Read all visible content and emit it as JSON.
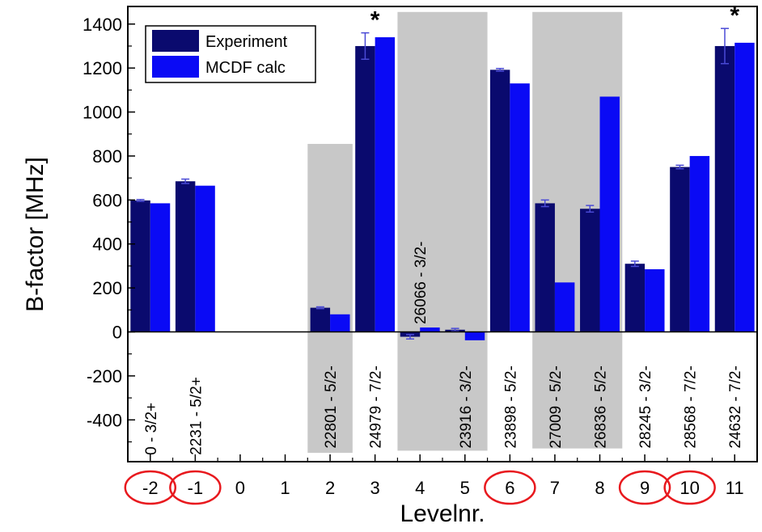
{
  "chart_data": {
    "type": "bar",
    "ylabel": "B-factor [MHz]",
    "xlabel": "Levelnr.",
    "ylim": [
      -590,
      1480
    ],
    "xlim": [
      -2.5,
      11.5
    ],
    "yticks": [
      -400,
      -200,
      0,
      200,
      400,
      600,
      800,
      1000,
      1200,
      1400
    ],
    "xticks": [
      "-2",
      "-1",
      "0",
      "1",
      "2",
      "3",
      "4",
      "5",
      "6",
      "7",
      "8",
      "9",
      "10",
      "11"
    ],
    "circled_ticks": [
      "-2",
      "-1",
      "6",
      "9",
      "10"
    ],
    "colors": {
      "experiment": "#0a0a6e",
      "calc": "#0a0af5",
      "shade": "#c8c8c8",
      "circle": "#e8191e",
      "errorbar": "#4a4ad6"
    },
    "legend": {
      "placement": "top-left",
      "entries": [
        "Experiment",
        "MCDF calc"
      ]
    },
    "series": [
      {
        "name": "Experiment",
        "x": [
          -2,
          -1,
          2,
          3,
          4,
          5,
          6,
          7,
          8,
          9,
          10,
          11
        ],
        "values": [
          598,
          685,
          110,
          1300,
          -22,
          10,
          1192,
          585,
          560,
          310,
          750,
          1300
        ],
        "errors": [
          4,
          10,
          4,
          60,
          10,
          6,
          6,
          15,
          15,
          12,
          8,
          80
        ]
      },
      {
        "name": "MCDF calc",
        "x": [
          -2,
          -1,
          2,
          3,
          4,
          5,
          6,
          7,
          8,
          9,
          10,
          11
        ],
        "values": [
          585,
          665,
          80,
          1340,
          20,
          -38,
          1130,
          225,
          1070,
          285,
          800,
          1315
        ]
      }
    ],
    "shaded_regions": [
      {
        "from": 1.5,
        "to": 2.5,
        "ymin": -550,
        "ymax": 855
      },
      {
        "from": 3.5,
        "to": 5.5,
        "ymin": -540,
        "ymax": 1455
      },
      {
        "from": 6.5,
        "to": 8.5,
        "ymin": -530,
        "ymax": 1455
      }
    ],
    "level_labels": [
      {
        "x": -2,
        "text": "0 - 3/2+",
        "y": -560
      },
      {
        "x": -1,
        "text": "2231 - 5/2+",
        "y": -560
      },
      {
        "x": 2,
        "text": "22801 - 5/2-",
        "y": -530
      },
      {
        "x": 3,
        "text": "24979 - 7/2-",
        "y": -530
      },
      {
        "x": 4,
        "text": "26066 - 3/2-",
        "y": 35
      },
      {
        "x": 5,
        "text": "23916 - 3/2-",
        "y": -530
      },
      {
        "x": 6,
        "text": "23898 - 5/2-",
        "y": -530
      },
      {
        "x": 7,
        "text": "27009 - 5/2-",
        "y": -530
      },
      {
        "x": 8,
        "text": "26836 - 5/2-",
        "y": -530
      },
      {
        "x": 9,
        "text": "28245 - 3/2-",
        "y": -530
      },
      {
        "x": 10,
        "text": "28568 - 7/2-",
        "y": -530
      },
      {
        "x": 11,
        "text": "24632 - 7/2-",
        "y": -530
      }
    ],
    "annotations": [
      {
        "x": 3,
        "text": "*"
      },
      {
        "x": 11,
        "text": "*"
      }
    ]
  }
}
